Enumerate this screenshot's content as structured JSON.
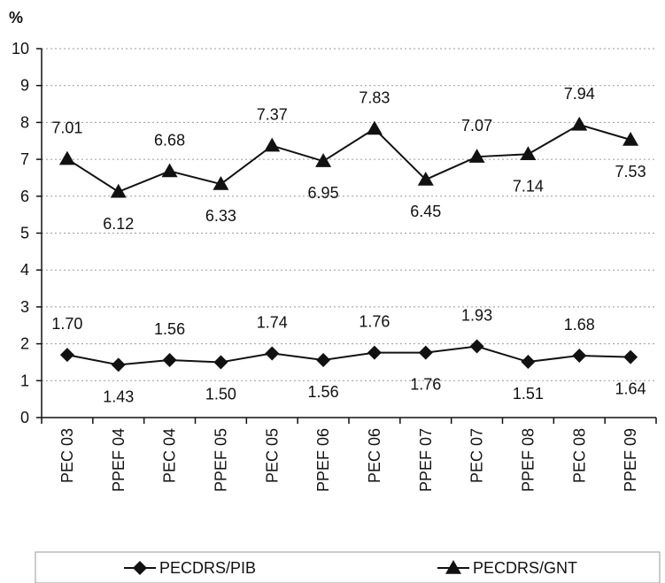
{
  "chart_data": {
    "type": "line",
    "ylabel": "%",
    "ylim": [
      0,
      10
    ],
    "yticks": [
      "0",
      "1",
      "2",
      "3",
      "4",
      "5",
      "6",
      "7",
      "8",
      "9",
      "10"
    ],
    "grid": "horizontal dotted",
    "legend_position": "bottom",
    "categories": [
      "PEC 03",
      "PPEF 04",
      "PEC 04",
      "PPEF 05",
      "PEC 05",
      "PPEF 06",
      "PEC 06",
      "PPEF 07",
      "PEC 07",
      "PPEF 08",
      "PEC 08",
      "PPEF 09"
    ],
    "series": [
      {
        "name": "PECDRS/PIB",
        "marker": "diamond",
        "values": [
          1.7,
          1.43,
          1.56,
          1.5,
          1.74,
          1.56,
          1.76,
          1.76,
          1.93,
          1.51,
          1.68,
          1.64
        ],
        "labels": [
          "1.70",
          "1.43",
          "1.56",
          "1.50",
          "1.74",
          "1.56",
          "1.76",
          "1.76",
          "1.93",
          "1.51",
          "1.68",
          "1.64"
        ],
        "label_pos": [
          "above",
          "below",
          "above",
          "below",
          "above",
          "below",
          "above",
          "below",
          "above",
          "below",
          "above",
          "below"
        ]
      },
      {
        "name": "PECDRS/GNT",
        "marker": "triangle",
        "values": [
          7.01,
          6.12,
          6.68,
          6.33,
          7.37,
          6.95,
          7.83,
          6.45,
          7.07,
          7.14,
          7.94,
          7.53
        ],
        "labels": [
          "7.01",
          "6.12",
          "6.68",
          "6.33",
          "7.37",
          "6.95",
          "7.83",
          "6.45",
          "7.07",
          "7.14",
          "7.94",
          "7.53"
        ],
        "label_pos": [
          "above",
          "below",
          "above",
          "below",
          "above",
          "below",
          "above",
          "below",
          "above",
          "below",
          "above",
          "below"
        ]
      }
    ]
  }
}
